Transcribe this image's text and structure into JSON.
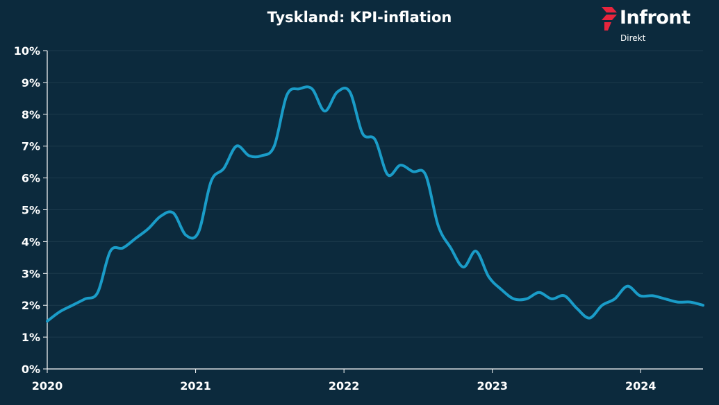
{
  "header": {
    "title": "Tyskland: KPI-inflation"
  },
  "logo": {
    "brand": "Infront",
    "subtitle": "Direkt"
  },
  "colors": {
    "background": "#0c2a3d",
    "line": "#1a9cc8",
    "grid": "#1d3a4d",
    "axis": "#ffffff",
    "logo_red": "#e8253d"
  },
  "chart_data": {
    "type": "line",
    "title": "Tyskland: KPI-inflation",
    "xlabel": "",
    "ylabel": "",
    "xlim": [
      2020,
      2024.42
    ],
    "ylim": [
      0,
      10
    ],
    "grid": true,
    "x_ticks": [
      "2020",
      "2021",
      "2022",
      "2023",
      "2024"
    ],
    "y_ticks": [
      "0%",
      "1%",
      "2%",
      "3%",
      "4%",
      "5%",
      "6%",
      "7%",
      "8%",
      "9%",
      "10%"
    ],
    "series": [
      {
        "values": [
          1.5,
          1.8,
          2.0,
          2.2,
          2.4,
          3.7,
          3.8,
          4.1,
          4.4,
          4.8,
          4.9,
          4.2,
          4.3,
          5.9,
          6.3,
          7.0,
          6.7,
          6.7,
          7.0,
          8.6,
          8.8,
          8.8,
          8.1,
          8.7,
          8.7,
          7.4,
          7.2,
          6.1,
          6.4,
          6.2,
          6.1,
          4.5,
          3.8,
          3.2,
          3.7,
          2.9,
          2.5,
          2.2,
          2.2,
          2.4,
          2.2,
          2.3,
          1.9,
          1.6,
          2.0,
          2.2,
          2.6,
          2.3,
          2.3,
          2.2,
          2.1,
          2.1,
          2.0
        ]
      }
    ]
  }
}
